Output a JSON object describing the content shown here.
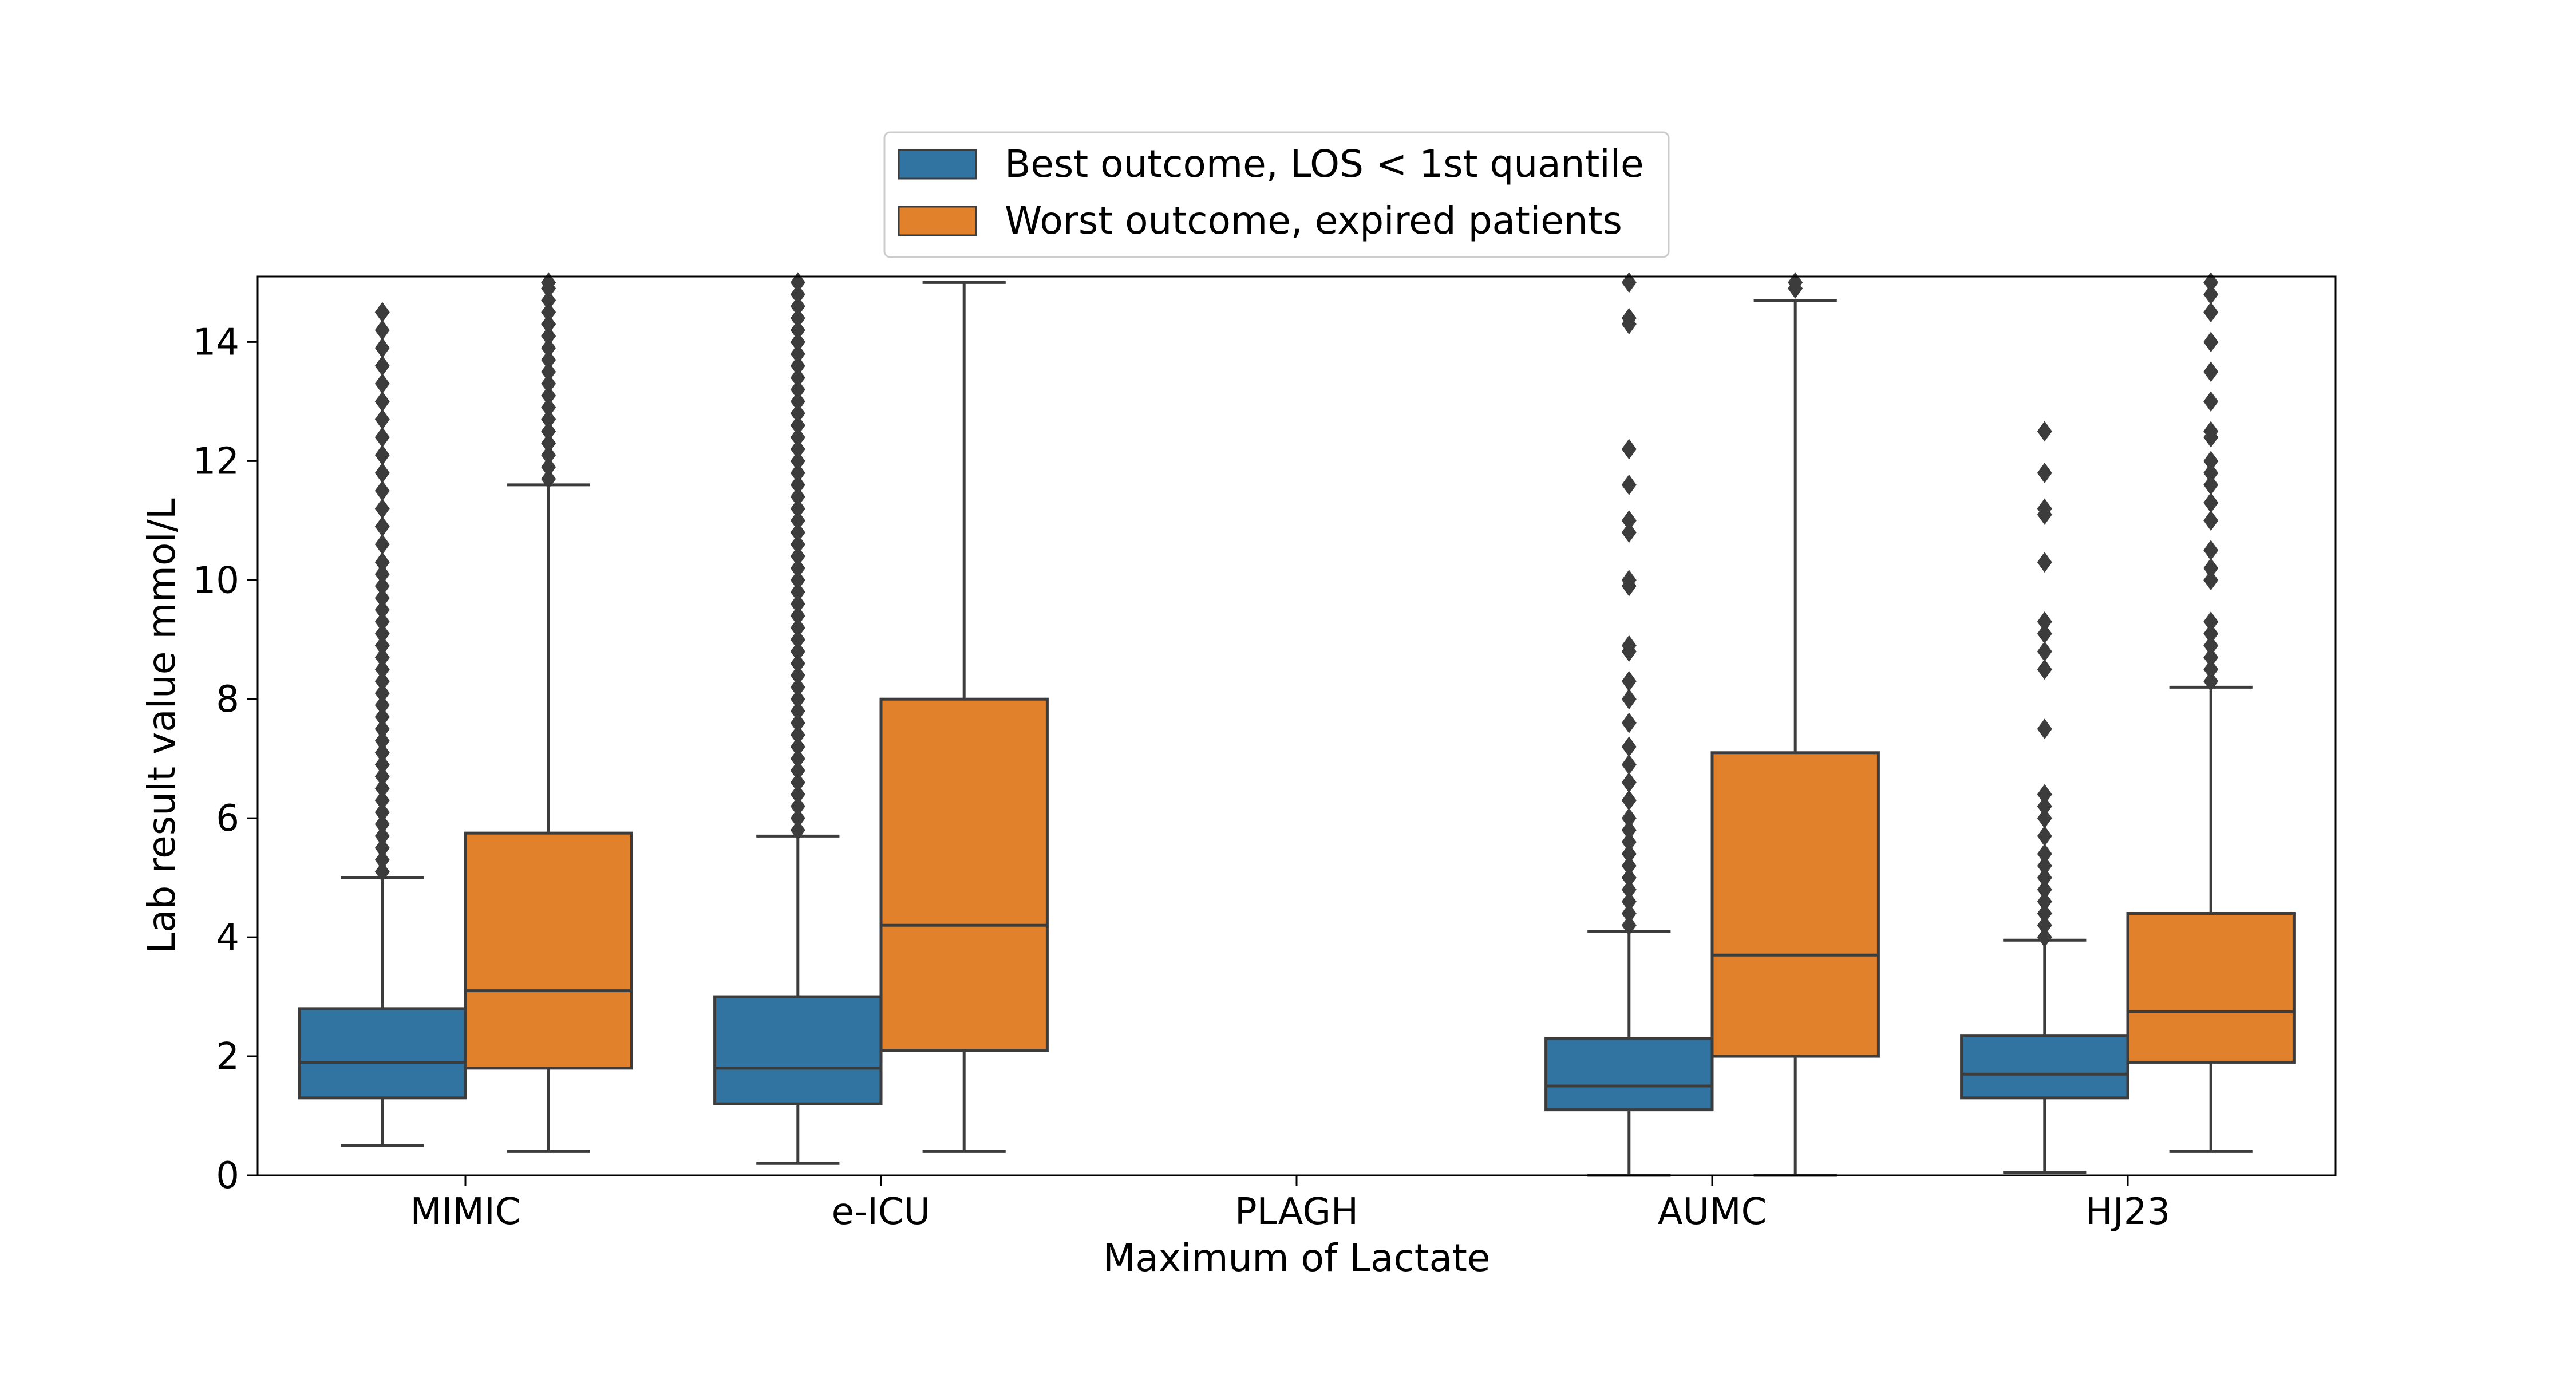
{
  "chart_data": {
    "type": "box",
    "xlabel": "Maximum of Lactate",
    "ylabel": "Lab result value mmol/L",
    "ylim": [
      0,
      15.1
    ],
    "yticks": [
      0,
      2,
      4,
      6,
      8,
      10,
      12,
      14
    ],
    "grid": false,
    "legend_position": "top-center",
    "categories": [
      "MIMIC",
      "e-ICU",
      "PLAGH",
      "AUMC",
      "HJ23"
    ],
    "series": [
      {
        "name": "Best outcome, LOS < 1st quantile",
        "color": "#3274a1",
        "boxes": [
          {
            "whislo": 0.5,
            "q1": 1.3,
            "med": 1.9,
            "q3": 2.8,
            "whishi": 5.0,
            "fliers": [
              5.1,
              5.3,
              5.5,
              5.7,
              5.9,
              6.1,
              6.3,
              6.5,
              6.7,
              6.9,
              7.1,
              7.3,
              7.5,
              7.7,
              7.9,
              8.1,
              8.3,
              8.5,
              8.7,
              8.9,
              9.1,
              9.3,
              9.5,
              9.7,
              9.9,
              10.1,
              10.3,
              10.6,
              10.9,
              11.2,
              11.5,
              11.8,
              12.1,
              12.4,
              12.7,
              13.0,
              13.3,
              13.6,
              13.9,
              14.2,
              14.5
            ]
          },
          {
            "whislo": 0.2,
            "q1": 1.2,
            "med": 1.8,
            "q3": 3.0,
            "whishi": 5.7,
            "fliers": [
              5.8,
              6.0,
              6.2,
              6.4,
              6.6,
              6.8,
              7.0,
              7.2,
              7.4,
              7.6,
              7.8,
              8.0,
              8.2,
              8.4,
              8.6,
              8.8,
              9.0,
              9.2,
              9.4,
              9.6,
              9.8,
              10.0,
              10.2,
              10.4,
              10.6,
              10.8,
              11.0,
              11.2,
              11.4,
              11.6,
              11.8,
              12.0,
              12.2,
              12.4,
              12.6,
              12.8,
              13.0,
              13.2,
              13.4,
              13.6,
              13.8,
              14.0,
              14.2,
              14.4,
              14.6,
              14.8,
              15.0
            ]
          },
          null,
          {
            "whislo": 0.0,
            "q1": 1.1,
            "med": 1.5,
            "q3": 2.3,
            "whishi": 4.1,
            "fliers": [
              4.2,
              4.4,
              4.6,
              4.8,
              5.0,
              5.2,
              5.4,
              5.6,
              5.8,
              6.0,
              6.3,
              6.6,
              6.9,
              7.2,
              7.6,
              8.0,
              8.3,
              8.8,
              8.9,
              9.9,
              10.0,
              10.8,
              11.0,
              11.6,
              12.2,
              14.3,
              14.4,
              15.0
            ]
          },
          {
            "whislo": 0.05,
            "q1": 1.3,
            "med": 1.7,
            "q3": 2.35,
            "whishi": 3.95,
            "fliers": [
              4.0,
              4.2,
              4.4,
              4.6,
              4.8,
              5.0,
              5.2,
              5.4,
              5.7,
              6.0,
              6.2,
              6.4,
              7.5,
              8.5,
              8.8,
              9.1,
              9.3,
              10.3,
              11.1,
              11.2,
              11.8,
              12.5
            ]
          }
        ]
      },
      {
        "name": "Worst outcome, expired patients",
        "color": "#e1812c",
        "boxes": [
          {
            "whislo": 0.4,
            "q1": 1.8,
            "med": 3.1,
            "q3": 5.75,
            "whishi": 11.6,
            "fliers": [
              11.7,
              11.9,
              12.1,
              12.3,
              12.5,
              12.7,
              12.9,
              13.1,
              13.3,
              13.5,
              13.7,
              13.9,
              14.1,
              14.3,
              14.5,
              14.7,
              14.9,
              15.0
            ]
          },
          {
            "whislo": 0.4,
            "q1": 2.1,
            "med": 4.2,
            "q3": 8.0,
            "whishi": 15.0,
            "fliers": []
          },
          null,
          {
            "whislo": 0.0,
            "q1": 2.0,
            "med": 3.7,
            "q3": 7.1,
            "whishi": 14.7,
            "fliers": [
              14.9,
              15.0
            ]
          },
          {
            "whislo": 0.4,
            "q1": 1.9,
            "med": 2.75,
            "q3": 4.4,
            "whishi": 8.2,
            "fliers": [
              8.3,
              8.5,
              8.7,
              8.9,
              9.1,
              9.3,
              10.0,
              10.2,
              10.5,
              11.0,
              11.3,
              11.6,
              11.8,
              12.0,
              12.4,
              12.5,
              13.0,
              13.5,
              14.0,
              14.5,
              14.8,
              15.0
            ]
          }
        ]
      }
    ]
  }
}
